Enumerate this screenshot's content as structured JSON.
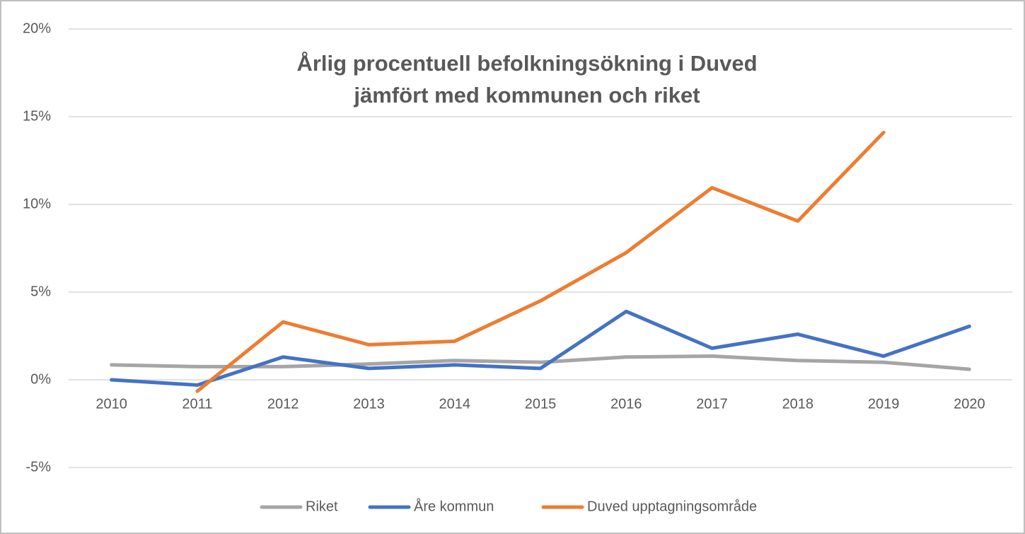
{
  "chart_data": {
    "type": "line",
    "title": [
      "Årlig procentuell befolkningsökning i Duved",
      "jämfört med kommunen och riket"
    ],
    "categories": [
      "2010",
      "2011",
      "2012",
      "2013",
      "2014",
      "2015",
      "2016",
      "2017",
      "2018",
      "2019",
      "2020"
    ],
    "series": [
      {
        "name": "Riket",
        "color": "#a5a5a5",
        "values": [
          0.85,
          0.75,
          0.75,
          0.9,
          1.1,
          1.0,
          1.3,
          1.35,
          1.1,
          1.0,
          0.6
        ]
      },
      {
        "name": "Åre kommun",
        "color": "#4472c4",
        "values": [
          0,
          -0.3,
          1.3,
          0.65,
          0.85,
          0.65,
          3.9,
          1.8,
          2.6,
          1.35,
          3.05
        ]
      },
      {
        "name": "Duved upptagningsområde",
        "color": "#ed7d31",
        "values": [
          null,
          -0.65,
          3.3,
          2.0,
          2.2,
          4.5,
          7.25,
          10.95,
          9.05,
          14.1,
          null
        ]
      }
    ],
    "ylim": [
      -5,
      20
    ],
    "yticks": [
      {
        "value": -5,
        "label": "-5%"
      },
      {
        "value": 0,
        "label": "0%"
      },
      {
        "value": 5,
        "label": "5%"
      },
      {
        "value": 10,
        "label": "10%"
      },
      {
        "value": 15,
        "label": "15%"
      },
      {
        "value": 20,
        "label": "20%"
      }
    ],
    "grid": true,
    "legend": "bottom"
  }
}
